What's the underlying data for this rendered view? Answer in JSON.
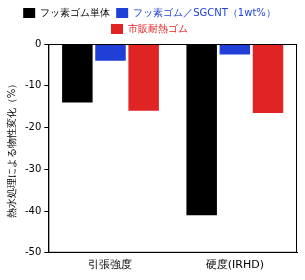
{
  "chart_data": {
    "type": "bar",
    "y_label": "熱水処理による物性変化（%）",
    "categories": [
      "引張強度",
      "硬度(IRHD)"
    ],
    "series": [
      {
        "name": "フッ素ゴム単体",
        "color": "#000000",
        "values": [
          -14,
          -41
        ]
      },
      {
        "name": "フッ素ゴム／SGCNT（1wt%）",
        "color": "#1f3fd6",
        "values": [
          -4,
          -2.5
        ]
      },
      {
        "name": "市販耐熱ゴム",
        "color": "#e02424",
        "values": [
          -16,
          -16.5
        ]
      }
    ],
    "ylim": [
      -50,
      0
    ],
    "yticks": [
      -50,
      -40,
      -30,
      -20,
      -10,
      0
    ],
    "grid": false,
    "legend": "top"
  }
}
